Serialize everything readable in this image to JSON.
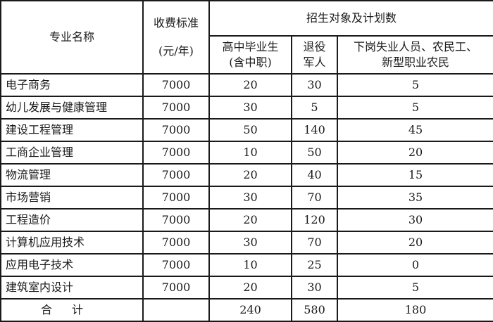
{
  "header": {
    "major_name": "专业名称",
    "fee_line1": "收费标准",
    "fee_line2": "(元/年)",
    "plan_group": "招生对象及计划数",
    "col_highschool_line1": "高中毕业生",
    "col_highschool_line2": "(含中职)",
    "col_veteran_line1": "退役",
    "col_veteran_line2": "军人",
    "col_other_line1": "下岗失业人员、农民工、",
    "col_other_line2": "新型职业农民"
  },
  "rows": [
    {
      "name": "电子商务",
      "fee": "7000",
      "highschool": "20",
      "veteran": "30",
      "other": "5"
    },
    {
      "name": "幼儿发展与健康管理",
      "fee": "7000",
      "highschool": "30",
      "veteran": "5",
      "other": "5"
    },
    {
      "name": "建设工程管理",
      "fee": "7000",
      "highschool": "50",
      "veteran": "140",
      "other": "45"
    },
    {
      "name": "工商企业管理",
      "fee": "7000",
      "highschool": "10",
      "veteran": "50",
      "other": "20"
    },
    {
      "name": "物流管理",
      "fee": "7000",
      "highschool": "20",
      "veteran": "40",
      "other": "15"
    },
    {
      "name": "市场营销",
      "fee": "7000",
      "highschool": "30",
      "veteran": "70",
      "other": "35"
    },
    {
      "name": "工程造价",
      "fee": "7000",
      "highschool": "20",
      "veteran": "120",
      "other": "30"
    },
    {
      "name": "计算机应用技术",
      "fee": "7000",
      "highschool": "30",
      "veteran": "70",
      "other": "20"
    },
    {
      "name": "应用电子技术",
      "fee": "7000",
      "highschool": "10",
      "veteran": "25",
      "other": "0"
    },
    {
      "name": "建筑室内设计",
      "fee": "7000",
      "highschool": "20",
      "veteran": "30",
      "other": "5"
    }
  ],
  "total": {
    "label": "合计",
    "fee": "",
    "highschool": "240",
    "veteran": "580",
    "other": "180"
  }
}
